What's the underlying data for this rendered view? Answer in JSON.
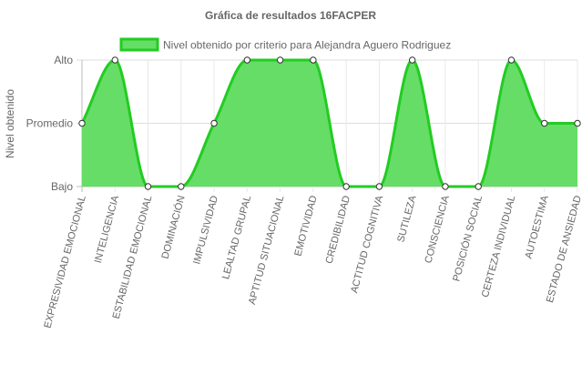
{
  "chart_data": {
    "type": "area",
    "title": "Gráfica de resultados 16FACPER",
    "ylabel": "Nivel obtenido",
    "xlabel": "",
    "y_tick_labels": [
      "Bajo",
      "Promedio",
      "Alto"
    ],
    "ylim": [
      0,
      2
    ],
    "grid": true,
    "legend_position": "top",
    "categories": [
      "EXPRESIVIDAD EMOCIONAL",
      "INTELIGENCIA",
      "ESTABILIDAD EMOCIONAL",
      "DOMINACIÓN",
      "IMPULSIVIDAD",
      "LEALTAD GRUPAL",
      "APTITUD SITUACIONAL",
      "EMOTIVIDAD",
      "CREDIBILIDAD",
      "ACTITUD COGNITIVA",
      "SUTILEZA",
      "CONSCIENCIA",
      "POSICIÓN SOCIAL",
      "CERTEZA INDIVIDUAL",
      "AUTOESTIMA",
      "ESTADO DE ANSIEDAD"
    ],
    "series": [
      {
        "name": "Nivel obtenido por criterio para Alejandra Aguero Rodriguez",
        "values": [
          1,
          2,
          0,
          0,
          1,
          2,
          2,
          2,
          0,
          0,
          2,
          0,
          0,
          2,
          1,
          1
        ],
        "fill_color": "#66dd66",
        "line_color": "#22cc22"
      }
    ]
  }
}
